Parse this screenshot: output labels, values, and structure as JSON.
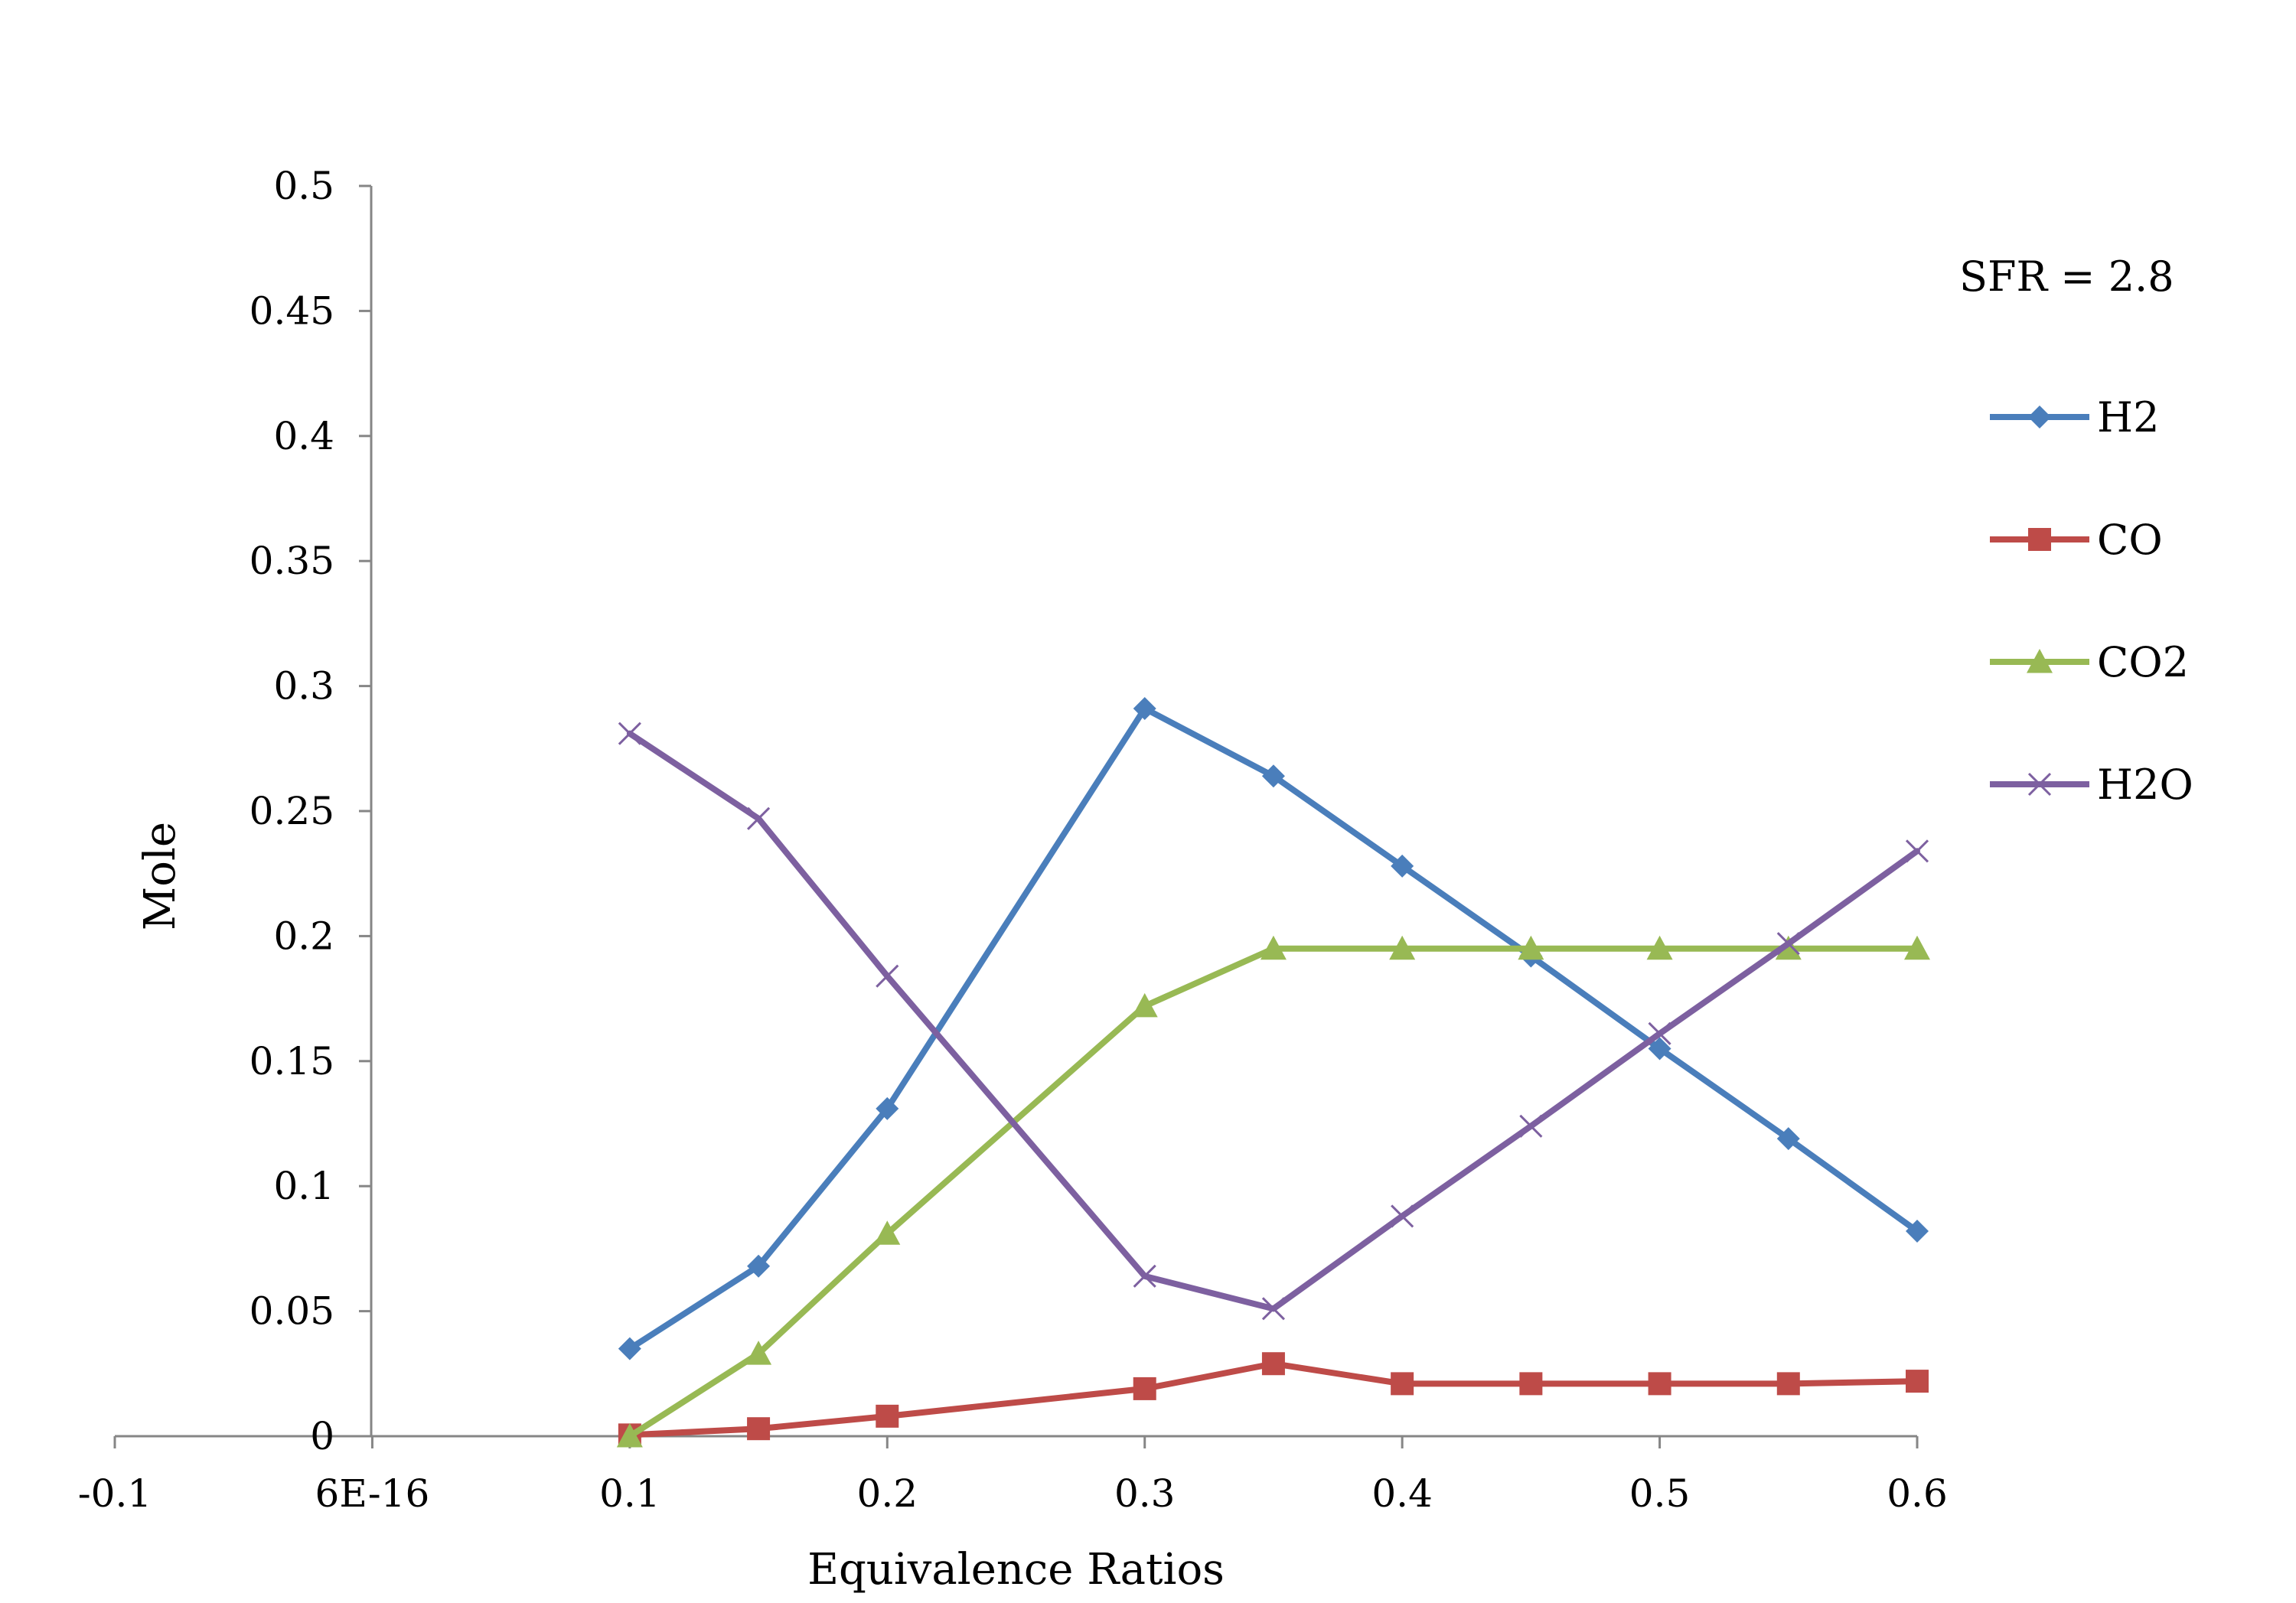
{
  "chart_data": {
    "type": "line",
    "title": "",
    "xlabel": "Equivalence Ratios",
    "ylabel": "Mole",
    "xlim": [
      -0.1,
      0.6
    ],
    "ylim": [
      0,
      0.5
    ],
    "grid": false,
    "legend_position": "right",
    "annotation": "SFR = 2.8",
    "x_tick_labels": [
      "-0.1",
      "6E-16",
      "0.1",
      "0.2",
      "0.3",
      "0.4",
      "0.5",
      "0.6"
    ],
    "x_tick_values": [
      -0.1,
      0,
      0.1,
      0.2,
      0.3,
      0.4,
      0.5,
      0.6
    ],
    "y_tick_labels": [
      "0",
      "0.05",
      "0.1",
      "0.15",
      "0.2",
      "0.25",
      "0.3",
      "0.35",
      "0.4",
      "0.45",
      "0.5"
    ],
    "y_tick_values": [
      0,
      0.05,
      0.1,
      0.15,
      0.2,
      0.25,
      0.3,
      0.35,
      0.4,
      0.45,
      0.5
    ],
    "x": [
      0.1,
      0.15,
      0.2,
      0.3,
      0.35,
      0.4,
      0.45,
      0.5,
      0.55,
      0.6
    ],
    "series": [
      {
        "name": "H2",
        "color": "#4a7ebb",
        "marker": "diamond",
        "values": [
          0.035,
          0.068,
          0.131,
          0.291,
          0.264,
          0.228,
          0.192,
          0.155,
          0.119,
          0.082
        ]
      },
      {
        "name": "CO",
        "color": "#be4b48",
        "marker": "square",
        "values": [
          0.0005,
          0.003,
          0.008,
          0.019,
          0.029,
          0.021,
          0.021,
          0.021,
          0.021,
          0.022
        ]
      },
      {
        "name": "CO2",
        "color": "#98b954",
        "marker": "triangle",
        "values": [
          0.0,
          0.033,
          0.081,
          0.172,
          0.195,
          0.195,
          0.195,
          0.195,
          0.195,
          0.195
        ]
      },
      {
        "name": "H2O",
        "color": "#7d60a0",
        "marker": "x",
        "values": [
          0.281,
          0.247,
          0.184,
          0.064,
          0.051,
          0.088,
          0.124,
          0.161,
          0.197,
          0.234
        ]
      }
    ]
  }
}
